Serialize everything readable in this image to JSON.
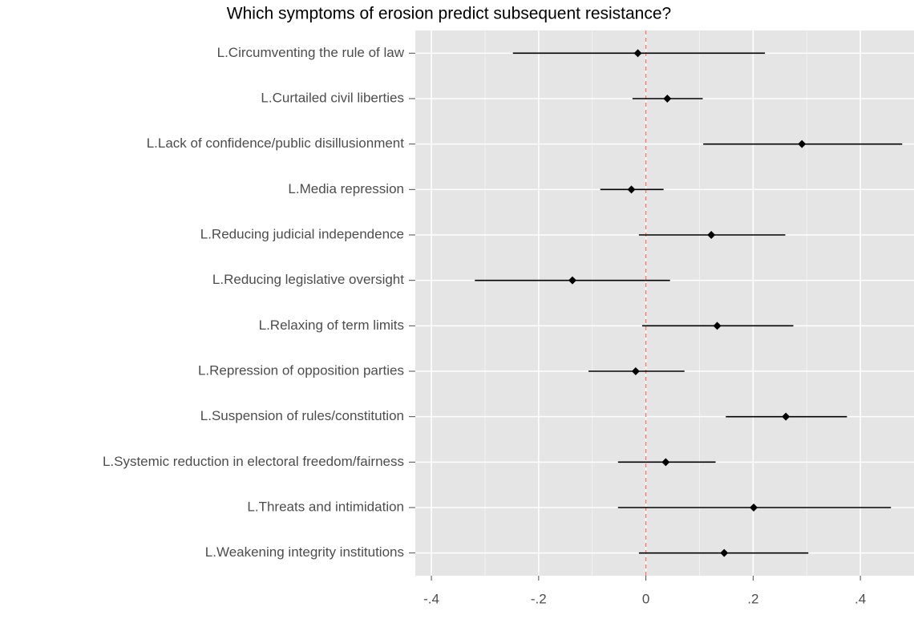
{
  "chart_data": {
    "type": "coefplot",
    "title": "Which symptoms of erosion predict subsequent resistance?",
    "categories": [
      "L.Circumventing the rule of law",
      "L.Curtailed civil liberties",
      "L.Lack of confidence/public disillusionment",
      "L.Media repression",
      "L.Reducing judicial independence",
      "L.Reducing legislative oversight",
      "L.Relaxing of term limits",
      "L.Repression of opposition parties",
      "L.Suspension of rules/constitution",
      "L.Systemic reduction in electoral freedom/fairness",
      "L.Threats and intimidation",
      "L.Weakening integrity institutions"
    ],
    "values": [
      -0.015,
      0.04,
      0.291,
      -0.027,
      0.122,
      -0.137,
      0.133,
      -0.019,
      0.261,
      0.037,
      0.201,
      0.146
    ],
    "ci_low": [
      -0.248,
      -0.025,
      0.107,
      -0.085,
      -0.013,
      -0.319,
      -0.007,
      -0.107,
      0.149,
      -0.052,
      -0.052,
      -0.013
    ],
    "ci_high": [
      0.222,
      0.106,
      0.478,
      0.033,
      0.26,
      0.045,
      0.275,
      0.072,
      0.375,
      0.13,
      0.457,
      0.303
    ],
    "color": "#000000",
    "xlim": [
      -0.43,
      0.5
    ],
    "xticks": [
      {
        "value": -0.4,
        "label": "-.4"
      },
      {
        "value": -0.2,
        "label": "-.2"
      },
      0,
      {
        "value": 0.2,
        "label": ".2"
      },
      {
        "value": 0.4,
        "label": ".4"
      }
    ],
    "ref_line": 0,
    "ref_line_color": "#f8766d",
    "grid": true
  }
}
